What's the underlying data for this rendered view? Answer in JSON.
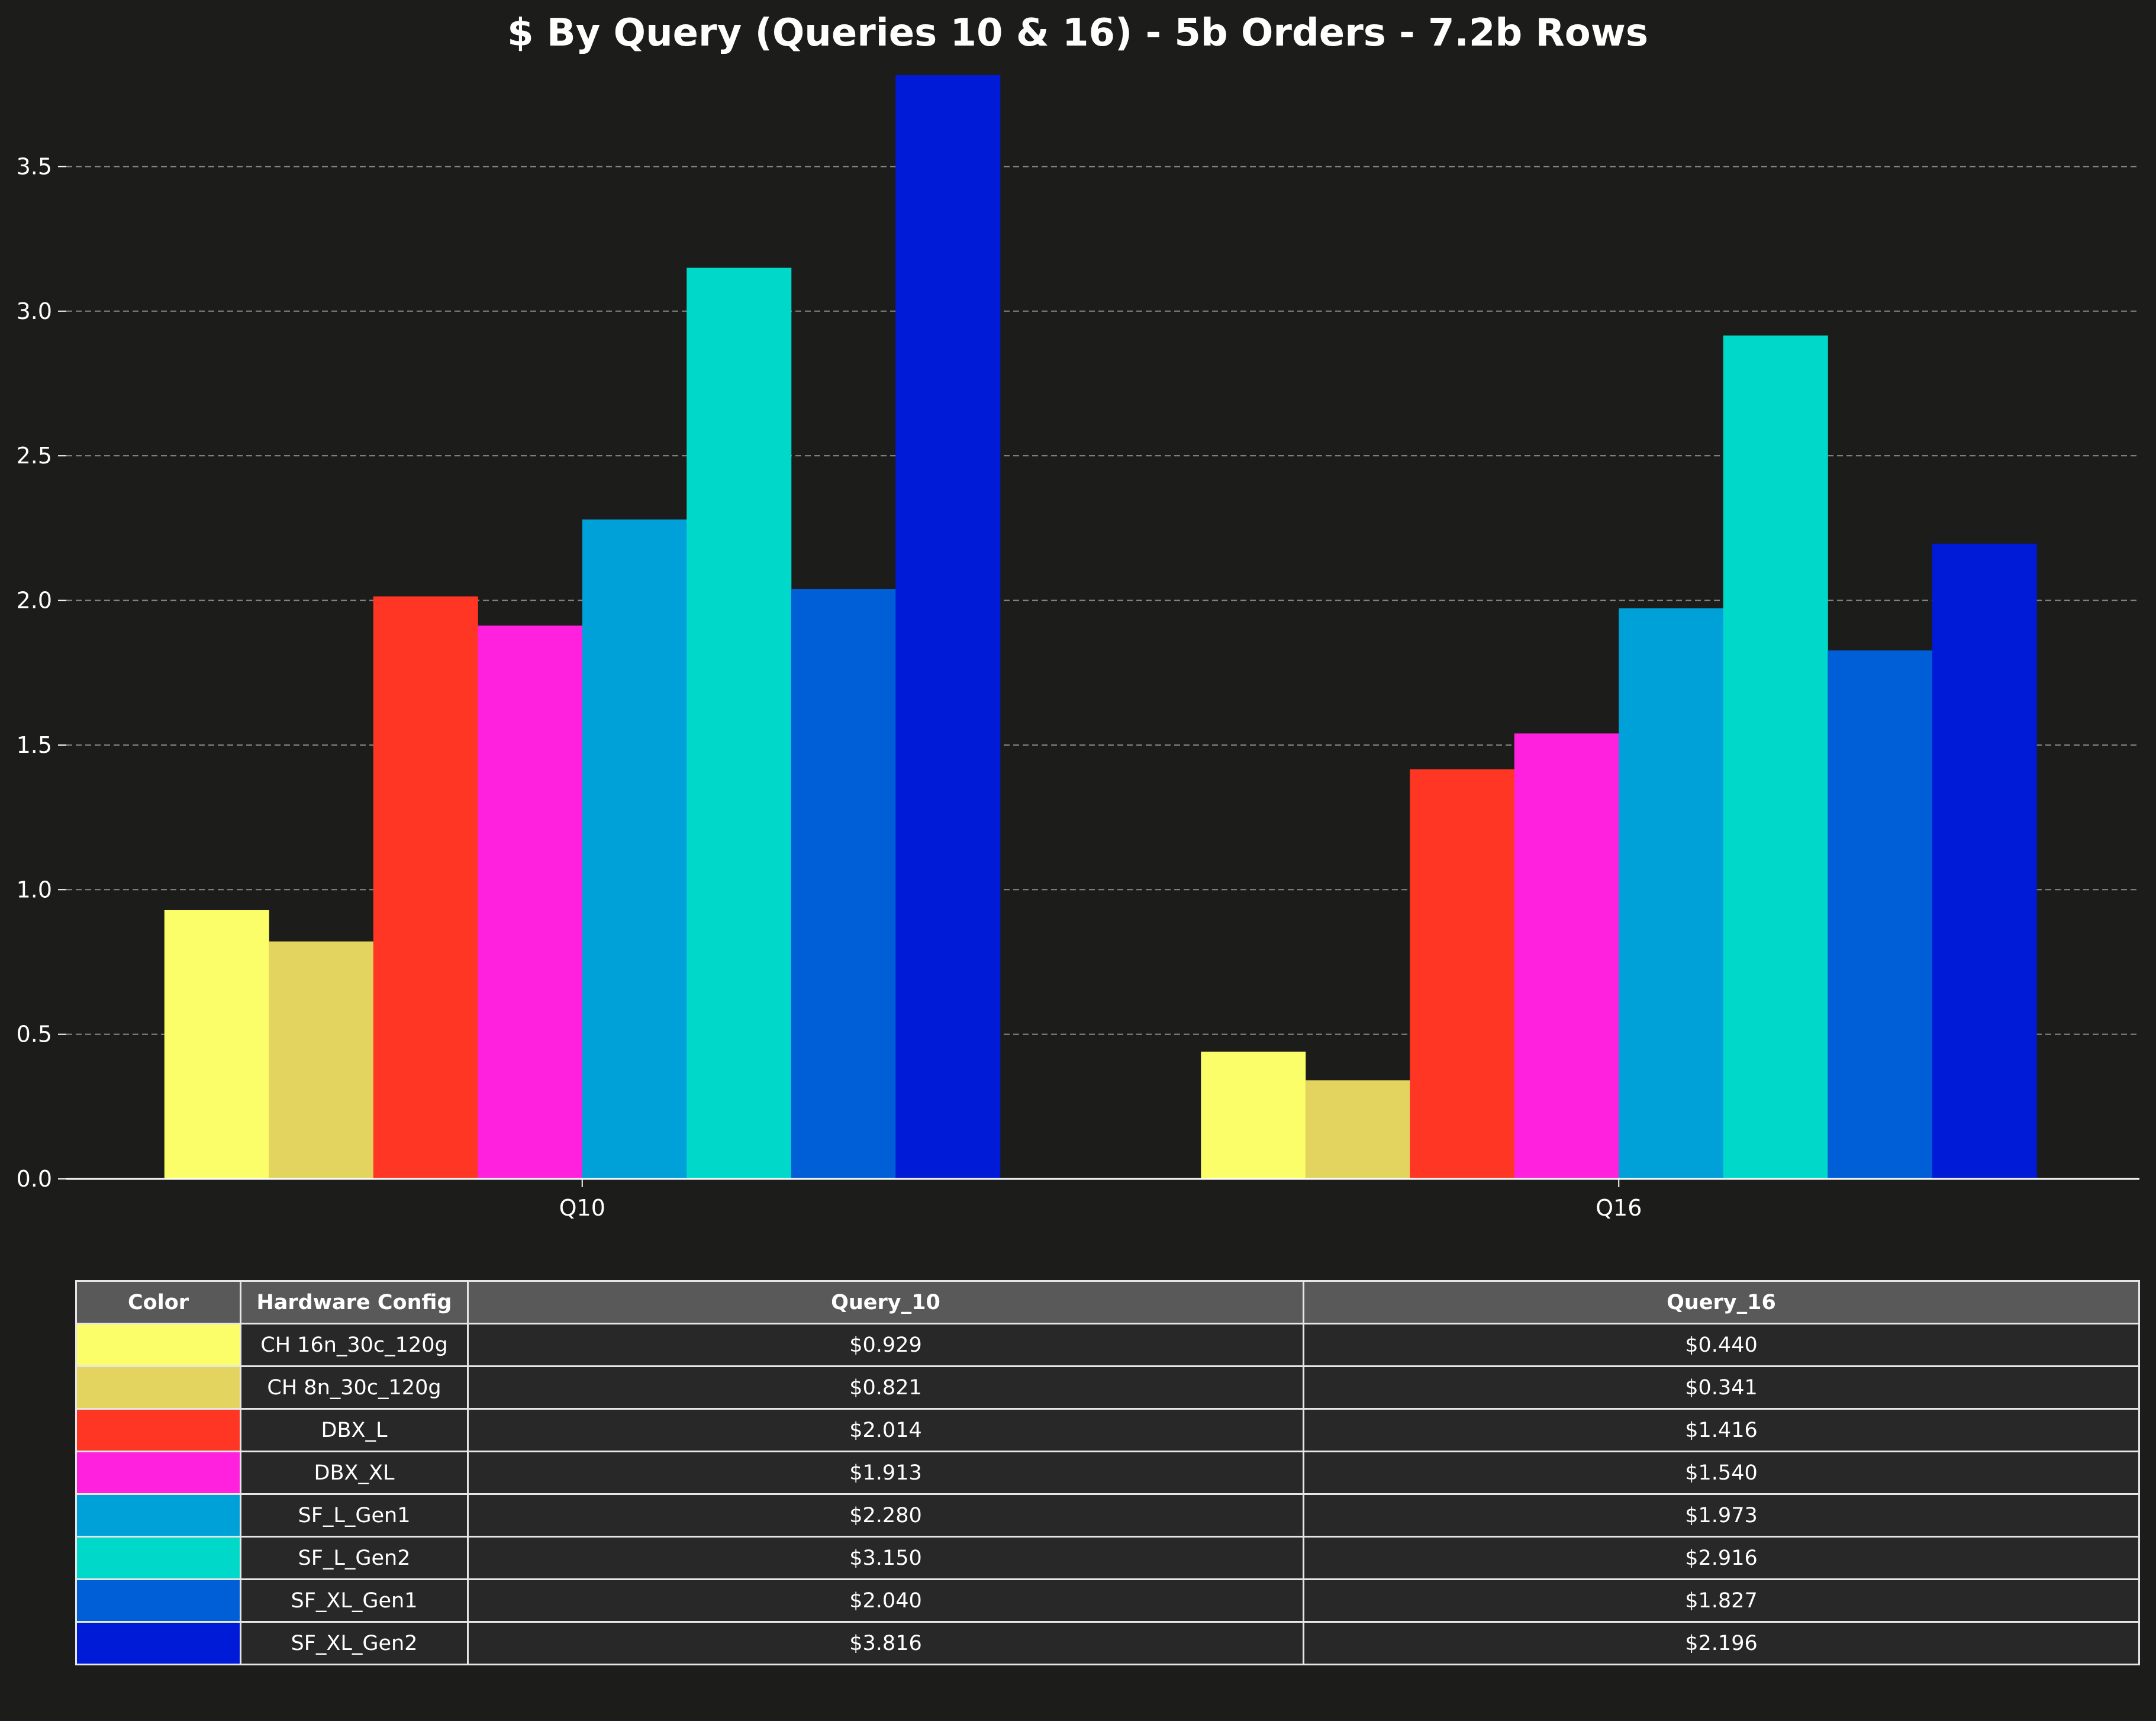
{
  "chart_data": {
    "type": "bar",
    "title": "$ By Query (Queries 10 & 16) - 5b Orders - 7.2b Rows",
    "xlabel": "",
    "ylabel": "",
    "categories": [
      "Q10",
      "Q16"
    ],
    "ylim": [
      0,
      3.816
    ],
    "yticks": [
      "0.0",
      "0.5",
      "1.0",
      "1.5",
      "2.0",
      "2.5",
      "3.0",
      "3.5"
    ],
    "grid": true,
    "series": [
      {
        "name": "CH 16n_30c_120g",
        "color": "#fbfd69",
        "values": [
          0.929,
          0.44
        ],
        "labels": [
          "$0.929",
          "$0.440"
        ]
      },
      {
        "name": "CH 8n_30c_120g",
        "color": "#e3d45f",
        "values": [
          0.821,
          0.341
        ],
        "labels": [
          "$0.821",
          "$0.341"
        ]
      },
      {
        "name": "DBX_L",
        "color": "#ff3624",
        "values": [
          2.014,
          1.416
        ],
        "labels": [
          "$2.014",
          "$1.416"
        ]
      },
      {
        "name": "DBX_XL",
        "color": "#ff21de",
        "values": [
          1.913,
          1.54
        ],
        "labels": [
          "$1.913",
          "$1.540"
        ]
      },
      {
        "name": "SF_L_Gen1",
        "color": "#00a0d8",
        "values": [
          2.28,
          1.973
        ],
        "labels": [
          "$2.280",
          "$1.973"
        ]
      },
      {
        "name": "SF_L_Gen2",
        "color": "#00d9c9",
        "values": [
          3.15,
          2.916
        ],
        "labels": [
          "$3.150",
          "$2.916"
        ]
      },
      {
        "name": "SF_XL_Gen1",
        "color": "#005fd7",
        "values": [
          2.04,
          1.827
        ],
        "labels": [
          "$2.040",
          "$1.827"
        ]
      },
      {
        "name": "SF_XL_Gen2",
        "color": "#001bd8",
        "values": [
          3.816,
          2.196
        ],
        "labels": [
          "$3.816",
          "$2.196"
        ]
      }
    ],
    "table": {
      "headers": [
        "Color",
        "Hardware Config",
        "Query_10",
        "Query_16"
      ]
    }
  }
}
